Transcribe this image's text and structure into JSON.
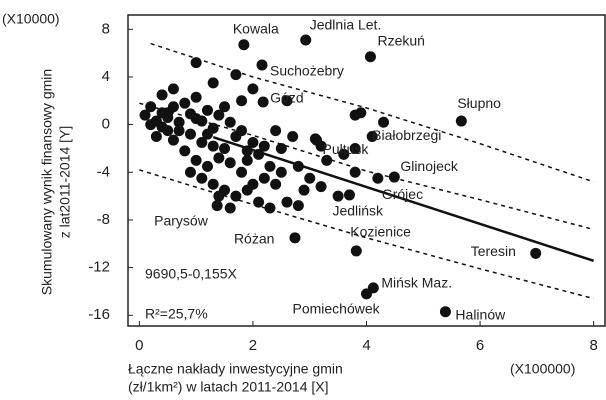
{
  "chart_data": {
    "type": "scatter",
    "y_unit": "(X10000)",
    "x_unit": "(X100000)",
    "ylabel": [
      "Skumulowany wynik finansowy gmin",
      "z lat2011-2014 [Y]"
    ],
    "xlabel": [
      "Łączne nakłady inwestycyjne gmin",
      "(zł/1km²)  w latach 2011-2014 [X]"
    ],
    "annotations": [
      "9690,5-0,155X",
      "R²=25,7%"
    ],
    "xlim": [
      -0.2,
      8.2
    ],
    "ylim": [
      -16.9,
      9.2
    ],
    "xticks": [
      0,
      2,
      4,
      6,
      8
    ],
    "yticks": [
      8,
      4,
      0,
      -4,
      -8,
      -12,
      -16
    ],
    "grid": false,
    "color": "#111111",
    "x": [
      0.1,
      0.2,
      0.3,
      0.4,
      0.5,
      0.5,
      0.6,
      0.7,
      0.8,
      0.9,
      1.0,
      1.0,
      1.1,
      1.2,
      1.3,
      1.4,
      1.5,
      1.6,
      1.7,
      1.8,
      0.3,
      0.4,
      0.6,
      0.8,
      1.0,
      1.2,
      1.4,
      1.6,
      1.8,
      1.9,
      2.0,
      2.1,
      2.2,
      2.3,
      2.4,
      2.5,
      1.5,
      1.7,
      1.9,
      2.1,
      2.3,
      2.6,
      2.8,
      1.3,
      1.1,
      0.9,
      1.6,
      1.4,
      2.0,
      1.3,
      1.0,
      1.7,
      2.0,
      1.8,
      2.6,
      3.1,
      3.2,
      3.6,
      3.3,
      3.0,
      2.9,
      3.2,
      3.5,
      3.8,
      3.9,
      4.1,
      2.5,
      2.8,
      2.7,
      2.4,
      0.2,
      0.7,
      1.2,
      1.5,
      0.5,
      0.9,
      1.1,
      1.3,
      1.9,
      2.2,
      4.3,
      0.4,
      0.6,
      3.8
    ],
    "values": [
      0.8,
      1.5,
      0.3,
      2.5,
      -0.5,
      1.0,
      3.0,
      0.2,
      1.8,
      -0.8,
      0.5,
      2.3,
      -1.5,
      1.2,
      -0.3,
      0.8,
      -2.0,
      0.2,
      -1.0,
      2.0,
      -1.0,
      -0.2,
      -1.3,
      -2.2,
      -3.0,
      -3.5,
      -2.8,
      -3.2,
      -4.0,
      -3.0,
      -1.5,
      -2.5,
      -4.5,
      -3.5,
      -5.0,
      -2.0,
      -5.5,
      -6.0,
      -5.5,
      -6.5,
      -7.0,
      -6.5,
      -6.8,
      -5.0,
      -4.5,
      -4.0,
      -7.0,
      -6.0,
      -5.0,
      3.5,
      5.2,
      4.2,
      3.0,
      -0.5,
      2.0,
      -1.2,
      -1.8,
      -2.5,
      -3.0,
      -4.5,
      -5.5,
      -5.2,
      -6.0,
      -4.0,
      1.0,
      -1.0,
      -4.0,
      -3.5,
      -1.0,
      -0.5,
      0.0,
      -0.5,
      -0.8,
      1.5,
      0.6,
      0.9,
      0.3,
      -1.8,
      -2.2,
      -1.8,
      0.2,
      1.0,
      1.5,
      -2.0
    ],
    "labeled_points": [
      {
        "label": "Kowala",
        "x": 1.84,
        "y": 6.7
      },
      {
        "label": "Jedlnia Let.",
        "x": 2.93,
        "y": 7.1
      },
      {
        "label": "Rzekuń",
        "x": 4.07,
        "y": 5.7
      },
      {
        "label": "Suchożebry",
        "x": 2.16,
        "y": 5.0
      },
      {
        "label": "Gózd",
        "x": 2.18,
        "y": 1.9
      },
      {
        "label": "Słupno",
        "x": 5.67,
        "y": 0.3
      },
      {
        "label": "Białobrzegi",
        "x": 3.8,
        "y": 0.8
      },
      {
        "label": "Pułtusk",
        "x": 3.12,
        "y": -1.3
      },
      {
        "label": "Glinojeck",
        "x": 4.49,
        "y": -4.4
      },
      {
        "label": "Grójec",
        "x": 4.2,
        "y": -4.5
      },
      {
        "label": "Jedlińsk",
        "x": 3.7,
        "y": -5.9
      },
      {
        "label": "Parysów",
        "x": 1.37,
        "y": -6.8
      },
      {
        "label": "Różan",
        "x": 2.74,
        "y": -9.5
      },
      {
        "label": "Kozienice",
        "x": 3.82,
        "y": -10.6
      },
      {
        "label": "Teresin",
        "x": 6.98,
        "y": -10.8
      },
      {
        "label": "Mińsk Maz.",
        "x": 4.12,
        "y": -13.7
      },
      {
        "label": "Pomiechówek",
        "x": 4.0,
        "y": -14.2
      },
      {
        "label": "Halinów",
        "x": 5.39,
        "y": -15.7
      }
    ],
    "lines": [
      {
        "style": "solid",
        "x": [
          1.3,
          8
        ],
        "values": [
          -1.05,
          -11.43
        ]
      },
      {
        "style": "dashed",
        "x": [
          0.2,
          2,
          4,
          6,
          8
        ],
        "values": [
          6.8,
          4.0,
          1.4,
          -1.6,
          -4.8
        ]
      },
      {
        "style": "dashed",
        "x": [
          0,
          2,
          4,
          6,
          8
        ],
        "values": [
          1.8,
          -0.9,
          -3.9,
          -6.3,
          -8.8
        ]
      },
      {
        "style": "dashed",
        "x": [
          0,
          2,
          4,
          6,
          8
        ],
        "values": [
          -3.8,
          -6.7,
          -9.5,
          -12.1,
          -14.6
        ]
      }
    ]
  }
}
